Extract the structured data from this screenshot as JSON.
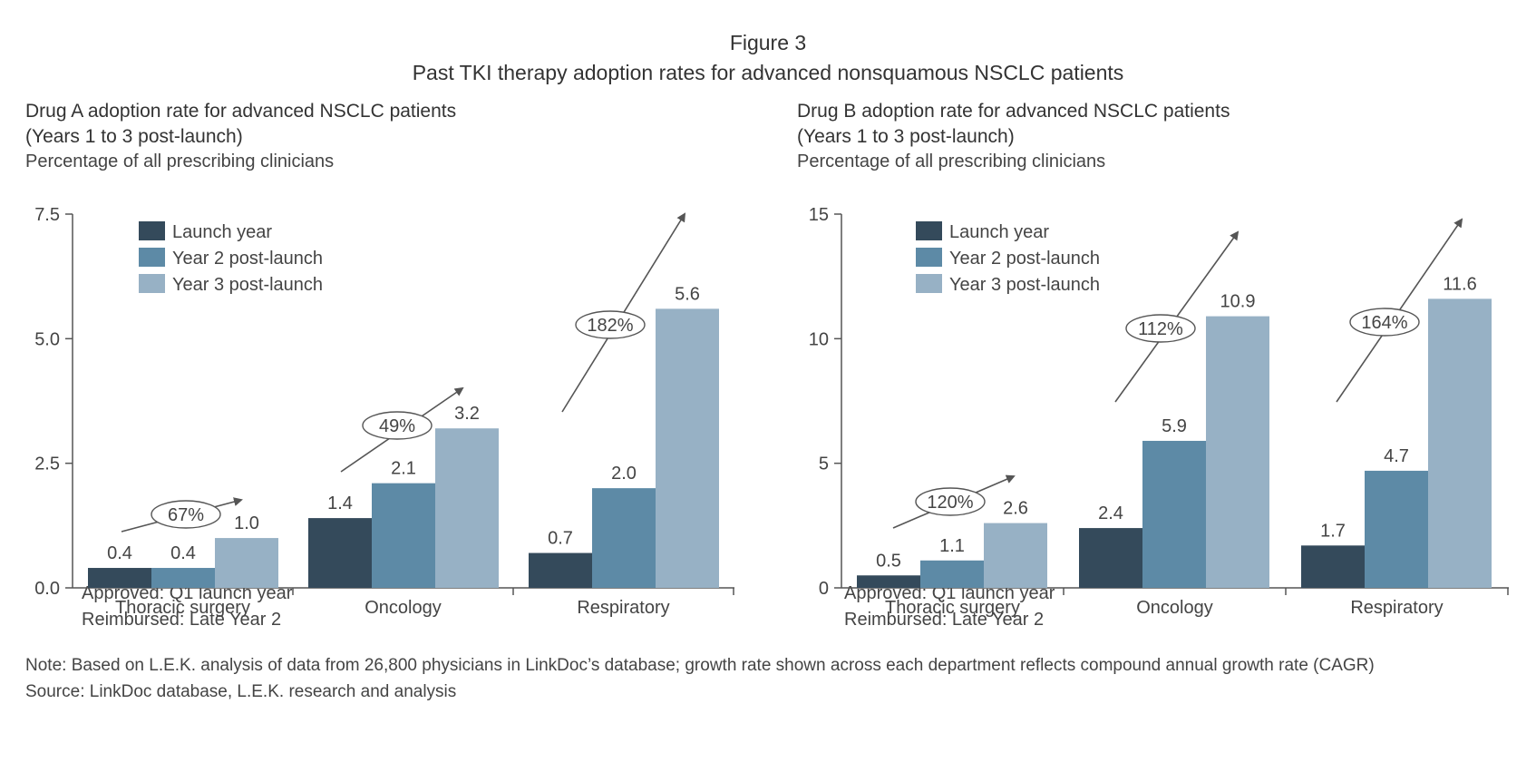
{
  "figure": {
    "label": "Figure 3",
    "title": "Past TKI therapy adoption rates for advanced nonsquamous NSCLC patients"
  },
  "colors": {
    "launch_year": "#344a5b",
    "year2": "#5d8aa6",
    "year3": "#97b1c5",
    "axis": "#555555",
    "arrow": "#555555"
  },
  "chart_data": [
    {
      "type": "bar",
      "title": "Drug A adoption rate for advanced NSCLC patients",
      "subtitle": "(Years 1 to 3 post-launch)",
      "ylabel": "Percentage of all prescribing clinicians",
      "categories": [
        "Thoracic surgery",
        "Oncology",
        "Respiratory"
      ],
      "series": [
        {
          "name": "Launch year",
          "values": [
            0.4,
            1.4,
            0.7
          ],
          "labels": [
            "0.4",
            "1.4",
            "0.7"
          ]
        },
        {
          "name": "Year 2 post-launch",
          "values": [
            0.4,
            2.1,
            2.0
          ],
          "labels": [
            "0.4",
            "2.1",
            "2.0"
          ]
        },
        {
          "name": "Year 3 post-launch",
          "values": [
            1.0,
            3.2,
            5.6
          ],
          "labels": [
            "1.0",
            "3.2",
            "5.6"
          ]
        }
      ],
      "ylim": [
        0,
        7.5
      ],
      "yticks": [
        0,
        2.5,
        5.0,
        7.5
      ],
      "ytick_labels": [
        "0.0",
        "2.5",
        "5.0",
        "7.5"
      ],
      "growth_annotations": [
        "67%",
        "49%",
        "182%"
      ],
      "legend": "top-left",
      "grid": false,
      "notes": [
        "Approved: Q1 launch year",
        "Reimbursed: Late Year 2"
      ]
    },
    {
      "type": "bar",
      "title": "Drug B adoption rate for advanced NSCLC patients",
      "subtitle": "(Years 1 to 3 post-launch)",
      "ylabel": "Percentage of all prescribing clinicians",
      "categories": [
        "Thoracic surgery",
        "Oncology",
        "Respiratory"
      ],
      "series": [
        {
          "name": "Launch year",
          "values": [
            0.5,
            2.4,
            1.7
          ],
          "labels": [
            "0.5",
            "2.4",
            "1.7"
          ]
        },
        {
          "name": "Year 2 post-launch",
          "values": [
            1.1,
            5.9,
            4.7
          ],
          "labels": [
            "1.1",
            "5.9",
            "4.7"
          ]
        },
        {
          "name": "Year 3 post-launch",
          "values": [
            2.6,
            10.9,
            11.6
          ],
          "labels": [
            "2.6",
            "10.9",
            "11.6"
          ]
        }
      ],
      "ylim": [
        0,
        15
      ],
      "yticks": [
        0,
        5,
        10,
        15
      ],
      "ytick_labels": [
        "0",
        "5",
        "10",
        "15"
      ],
      "growth_annotations": [
        "120%",
        "112%",
        "164%"
      ],
      "legend": "top-left",
      "grid": false,
      "notes": [
        "Approved: Q1 launch year",
        "Reimbursed: Late Year 2"
      ]
    }
  ],
  "footer": {
    "note": "Note: Based on L.E.K. analysis of data from 26,800 physicians in LinkDoc’s database; growth rate shown across each department reflects compound annual growth rate (CAGR)",
    "source": "Source: LinkDoc database, L.E.K. research and analysis"
  }
}
